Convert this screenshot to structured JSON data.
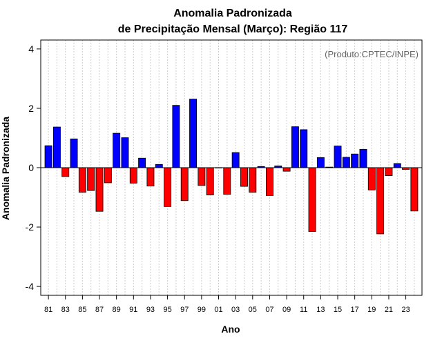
{
  "chart_data": {
    "type": "bar",
    "title_line1": "Anomalia Padronizada",
    "title_line2": "de Precipitação Mensal (Março): Região 117",
    "xlabel": "Ano",
    "ylabel": "Anomalia Padronizada",
    "credit": "(Produto:CPTEC/INPE)",
    "ylim": [
      -4.3,
      4.3
    ],
    "yticks": [
      -4,
      -2,
      0,
      2,
      4
    ],
    "ytick_labels": [
      "-4",
      "-2",
      "0",
      "2",
      "4"
    ],
    "xtick_years": [
      1981,
      1983,
      1985,
      1987,
      1989,
      1991,
      1993,
      1995,
      1997,
      1999,
      2001,
      2003,
      2005,
      2007,
      2009,
      2011,
      2013,
      2015,
      2017,
      2019,
      2021,
      2023
    ],
    "xtick_labels": [
      "81",
      "83",
      "85",
      "87",
      "89",
      "91",
      "93",
      "95",
      "97",
      "99",
      "01",
      "03",
      "05",
      "07",
      "09",
      "11",
      "13",
      "15",
      "17",
      "19",
      "21",
      "23"
    ],
    "grid": true,
    "positive_color": "#0000ff",
    "negative_color": "#ff0000",
    "years": [
      1981,
      1982,
      1983,
      1984,
      1985,
      1986,
      1987,
      1988,
      1989,
      1990,
      1991,
      1992,
      1993,
      1994,
      1995,
      1996,
      1997,
      1998,
      1999,
      2000,
      2001,
      2002,
      2003,
      2004,
      2005,
      2006,
      2007,
      2008,
      2009,
      2010,
      2011,
      2012,
      2013,
      2014,
      2015,
      2016,
      2017,
      2018,
      2019,
      2020,
      2021,
      2022,
      2023,
      2024
    ],
    "values": [
      0.74,
      1.37,
      -0.3,
      0.97,
      -0.83,
      -0.77,
      -1.47,
      -0.51,
      1.16,
      1.01,
      -0.52,
      0.32,
      -0.62,
      0.11,
      -1.31,
      2.1,
      -1.11,
      2.31,
      -0.6,
      -0.92,
      0.0,
      -0.9,
      0.51,
      -0.63,
      -0.83,
      0.04,
      -0.94,
      0.06,
      -0.12,
      1.38,
      1.28,
      -2.15,
      0.34,
      0.02,
      0.73,
      0.35,
      0.46,
      0.62,
      -0.75,
      -2.23,
      -0.27,
      0.14,
      -0.06,
      -1.46
    ]
  }
}
